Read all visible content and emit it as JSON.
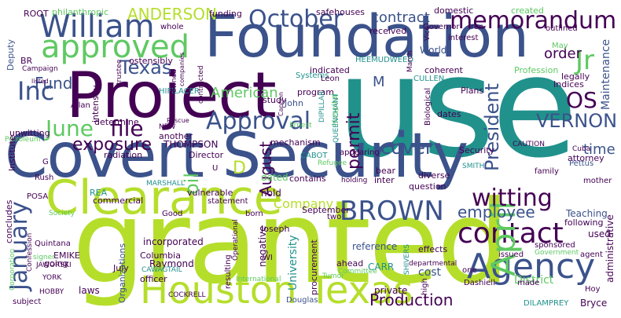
{
  "colors": {
    "background": "#ffffff",
    "purple": "#440154",
    "indigo": "#3b528b",
    "teal": "#21918c",
    "green": "#5ec962",
    "lime": "#b5de2b"
  },
  "words": {
    "use": "use",
    "granted": "granted",
    "covert_security": "Covert Security",
    "foundation": "Foundation",
    "project": "Project",
    "clearance": "Clearance",
    "houston_texas": "Houston Texas",
    "approved": "approved",
    "william": "William",
    "october": "October",
    "memorandum": "memorandum",
    "contact": "contact",
    "agency": "Agency",
    "april": "April",
    "brown": "BROWN",
    "witting": "witting",
    "approval": "Approval",
    "june": "June",
    "file": "file",
    "inc": "Inc",
    "jr": "Jr",
    "texas": "Texas",
    "anderson": "ANDERSON",
    "fund": "Fund",
    "exposure": "exposure",
    "cover": "cover",
    "vernon": "VERNON",
    "os": "OS",
    "employee": "employee",
    "president": "President",
    "permit": "permit",
    "american": "American",
    "order": "order",
    "contract": "contract",
    "time": "time",
    "january": "January",
    "august": "August",
    "production": "Production",
    "company": "Company",
    "oil": "oil",
    "university": "University",
    "maintenance": "Maintenance",
    "administrative": "administrative",
    "m": "M",
    "d": "D",
    "security": "Security",
    "cost": "cost",
    "private": "private",
    "carr": "CARR",
    "dilamprey": "DILAMPREY",
    "bryce": "Bryce",
    "district": "District",
    "effects": "effects",
    "ahead": "ahead",
    "reference": "reference",
    "september": "September",
    "hold": "hold",
    "contains": "contains",
    "dated": "dated",
    "negative": "negative",
    "joseph": "Joseph",
    "raymond": "Raymond",
    "columbia": "Columbia",
    "incorporated": "incorporated",
    "going": "going",
    "officer": "officer",
    "july": "July",
    "laws": "laws",
    "organizations": "Organizations",
    "douglas": "Douglas",
    "thompson": "THOMPSON",
    "director": "Director",
    "mechanism": "mechanism",
    "study": "study",
    "john": "John",
    "program": "program",
    "indicated": "indicated",
    "coherent": "coherent",
    "plans": "Plans",
    "profession": "Profession",
    "heemudweed": "HEEMUDWEED",
    "systems": "Systems",
    "hifilacer": "HIFILACER",
    "another": "another",
    "radiation": "radiation",
    "determine": "determine",
    "intensity": "intensity",
    "ostensibly": "ostensibly",
    "whole": "whole",
    "deputy": "Deputy",
    "root": "ROOT",
    "philanthropic": "philanthropic",
    "funding": "funding",
    "safehouses": "safehouses",
    "domestic": "domestic",
    "created": "created",
    "received": "received",
    "governor": "Governor",
    "iron": "Iron",
    "outlined": "outlined",
    "world": "World",
    "interest": "interest",
    "may": "May",
    "cullen": "CULLEN",
    "legally": "legally",
    "indices": "Indices",
    "attorney": "attorney",
    "caution": "CAUTION",
    "cuba": "Cuba",
    "pettus": "Pettus",
    "family": "family",
    "mother": "mother",
    "teaching": "Teaching",
    "following": "following",
    "used": "used",
    "sponsored": "sponsored",
    "agent": "agent",
    "government": "Government",
    "issued": "issued",
    "made": "made",
    "hoy": "Hoy",
    "dashiell": "Dashiell",
    "one": "one",
    "departmental": "departmental",
    "shivers": "SHIVERS",
    "committee": "Committee",
    "tumor": "Tumor",
    "procurement": "procurement",
    "high": "high",
    "bear": "bear",
    "inter": "inter",
    "smith": "SMITH",
    "question": "question",
    "diverse": "diverse",
    "holding": "holding",
    "cabot": "CABOT",
    "refugee": "Refugee",
    "ernest": "Ernest",
    "appearing": "appearing",
    "dates": "dates",
    "biological": "Biological",
    "hospital": "Hospital",
    "queenchant": "QUEENCHANT",
    "leon": "Leon",
    "dipillar": "DIPILLAR",
    "petroleum": "Petroleum",
    "unwitting": "unwitting",
    "institute": "Institute",
    "concludes": "concludes",
    "rush": "Rush",
    "posa": "POSA",
    "g": "G",
    "marshall": "MARSHALL",
    "rea": "REA",
    "emike": "EMIKE",
    "commercial": "commercial",
    "cawagtail": "CAWAGTAIL",
    "vulnerable": "vulnerable",
    "good": "Good",
    "born": "born",
    "two": "two",
    "statement": "statement",
    "society": "Society",
    "quintana": "Quintana",
    "jaworski": "JAWORSKI",
    "york": "YORK",
    "signer": "signer",
    "hobby": "HOBBY",
    "subject": "subject",
    "cockrell": "COCKRELL",
    "confession": "Confession",
    "corporation": "Corporation",
    "operational": "Operational",
    "international": "International",
    "resulting": "resulting",
    "contracted": "contracted",
    "new": "NEW",
    "allan": "Allan",
    "trustee": "trustee",
    "owned": "owned",
    "companies": "companies",
    "listed": "listed",
    "campaign": "Campaign",
    "br": "BR",
    "rescue": "Rescue",
    "vice": "Vice",
    "march": "March",
    "u": "U",
    "wi": "WI",
    "caption": "Caption"
  }
}
